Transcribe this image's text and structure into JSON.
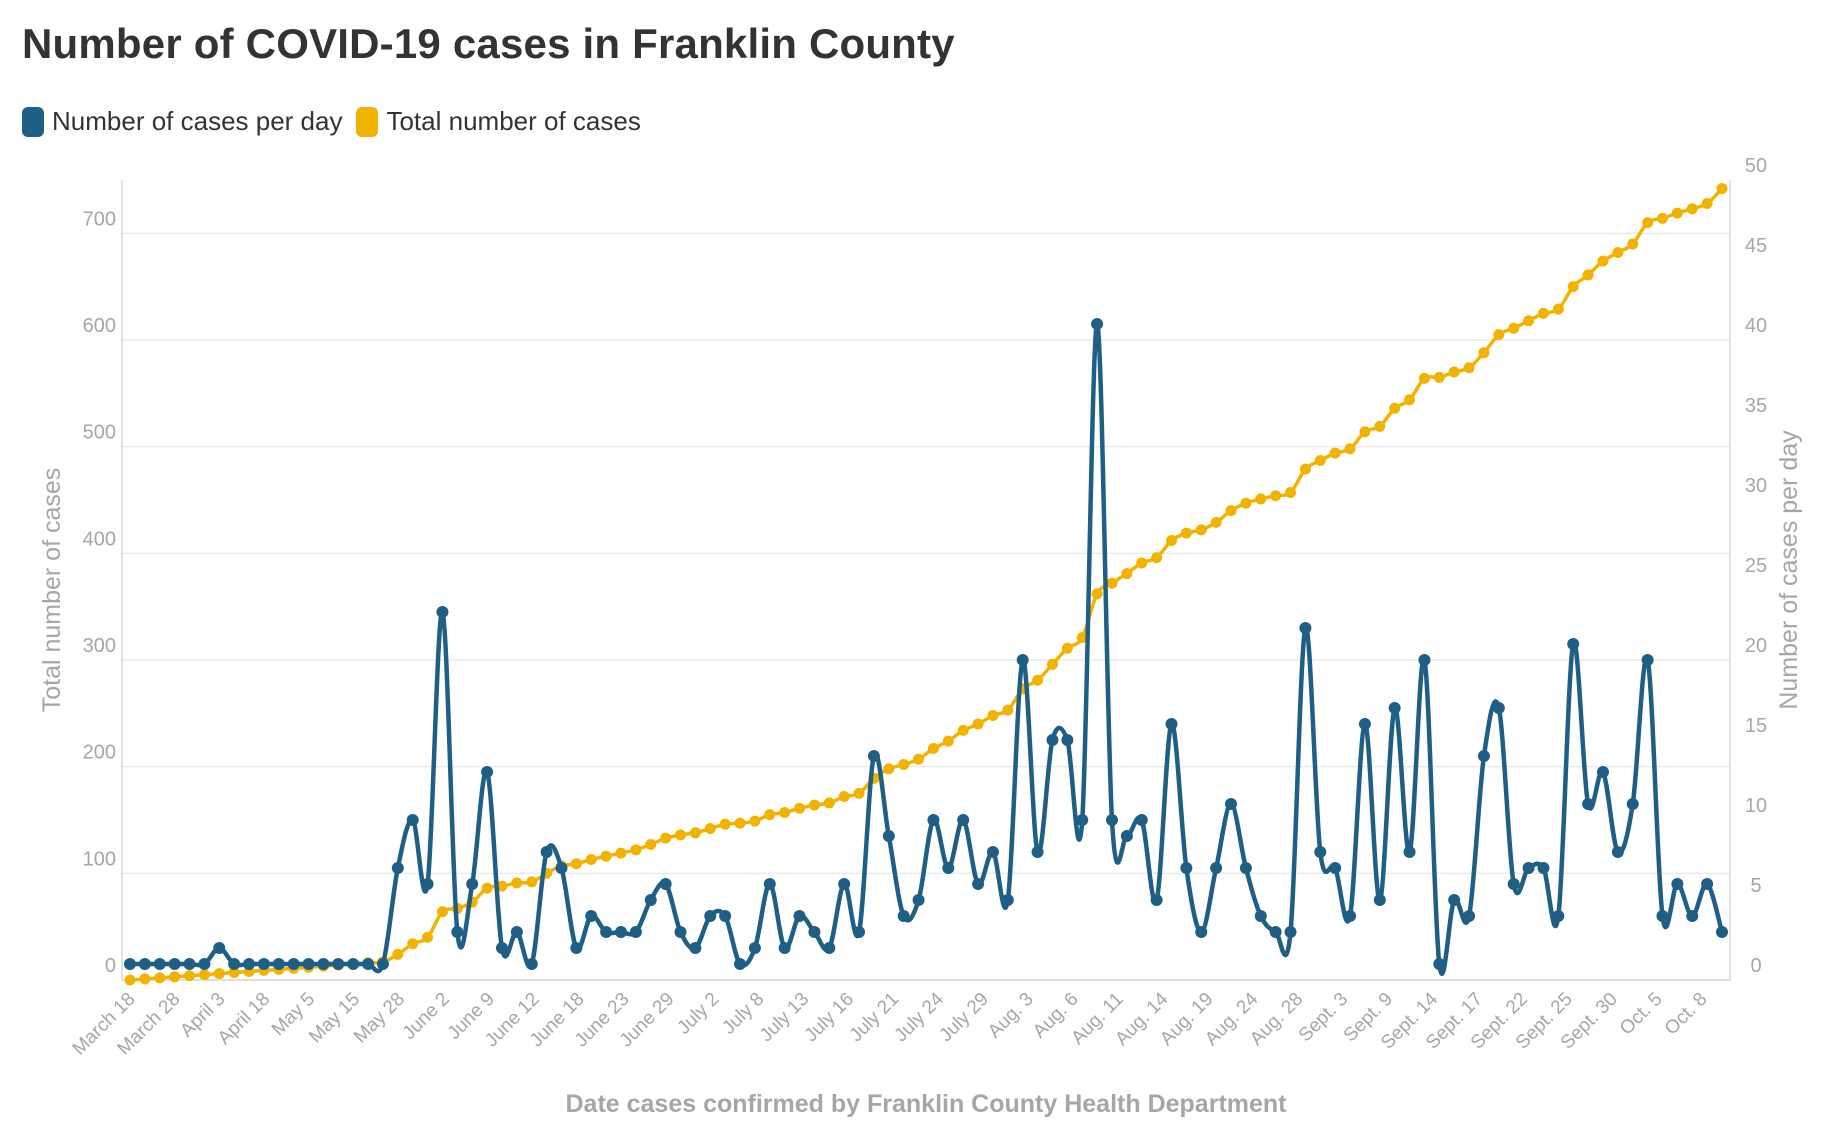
{
  "title": "Number of COVID-19 cases in Franklin County",
  "colors": {
    "daily": "#1f5f86",
    "total": "#f2b300",
    "grid": "#e6e6e6",
    "axis_text": "#a6a6a6"
  },
  "chart_data": {
    "type": "line",
    "title": "Number of COVID-19 cases in Franklin County",
    "xlabel": "Date cases confirmed by Franklin County Health Department",
    "ylabel_left": "Total number of cases",
    "ylabel_right": "Number of cases per day",
    "ylim_left": [
      0,
      750
    ],
    "ylim_right": [
      0,
      50
    ],
    "yticks_left": [
      0,
      100,
      200,
      300,
      400,
      500,
      600,
      700
    ],
    "yticks_right": [
      0,
      5,
      10,
      15,
      20,
      25,
      30,
      35,
      40,
      45,
      50
    ],
    "x_tick_labels": [
      "March 18",
      "March 28",
      "April 3",
      "April 18",
      "May 5",
      "May 15",
      "May 28",
      "June 2",
      "June 9",
      "June 12",
      "June 18",
      "June 23",
      "June 29",
      "July 2",
      "July 8",
      "July 13",
      "July 16",
      "July 21",
      "July 24",
      "July 29",
      "Aug. 3",
      "Aug. 6",
      "Aug. 11",
      "Aug. 14",
      "Aug. 19",
      "Aug. 24",
      "Aug. 28",
      "Sept. 3",
      "Sept. 9",
      "Sept. 14",
      "Sept. 17",
      "Sept. 22",
      "Sept. 25",
      "Sept. 30",
      "Oct. 5",
      "Oct. 8"
    ],
    "legend_position": "top-left",
    "grid": true,
    "series": [
      {
        "name": "Number of cases per day",
        "axis": "right",
        "values": [
          1,
          1,
          1,
          1,
          1,
          1,
          2,
          1,
          1,
          1,
          1,
          1,
          1,
          1,
          1,
          1,
          1,
          1,
          7,
          10,
          6,
          23,
          3,
          6,
          13,
          2,
          3,
          1,
          8,
          7,
          2,
          4,
          3,
          3,
          3,
          5,
          6,
          3,
          2,
          4,
          4,
          1,
          2,
          6,
          2,
          4,
          3,
          2,
          6,
          3,
          14,
          9,
          4,
          5,
          10,
          7,
          10,
          6,
          8,
          5,
          20,
          8,
          15,
          15,
          10,
          41,
          10,
          9,
          10,
          5,
          16,
          7,
          3,
          7,
          11,
          7,
          4,
          3,
          3,
          22,
          8,
          7,
          4,
          16,
          5,
          17,
          8,
          20,
          1,
          5,
          4,
          14,
          17,
          6,
          7,
          7,
          4,
          21,
          11,
          13,
          8,
          11,
          20,
          4,
          6,
          4,
          6,
          3
        ]
      },
      {
        "name": "Total number of cases",
        "axis": "left",
        "values": [
          0,
          1,
          2,
          3,
          4,
          5,
          6,
          7,
          8,
          9,
          10,
          11,
          12,
          13,
          14,
          15,
          16,
          17,
          24,
          34,
          40,
          64,
          67,
          73,
          86,
          88,
          91,
          92,
          100,
          107,
          109,
          113,
          116,
          119,
          122,
          127,
          133,
          136,
          138,
          142,
          146,
          147,
          149,
          155,
          157,
          161,
          164,
          166,
          172,
          175,
          189,
          198,
          202,
          207,
          217,
          224,
          234,
          240,
          248,
          253,
          273,
          281,
          296,
          311,
          321,
          362,
          372,
          381,
          391,
          396,
          412,
          419,
          422,
          429,
          440,
          447,
          451,
          454,
          457,
          479,
          487,
          494,
          498,
          514,
          519,
          536,
          544,
          564,
          565,
          570,
          574,
          588,
          605,
          611,
          618,
          625,
          629,
          650,
          661,
          674,
          682,
          690,
          710,
          714,
          719,
          723,
          728,
          742
        ]
      }
    ]
  }
}
